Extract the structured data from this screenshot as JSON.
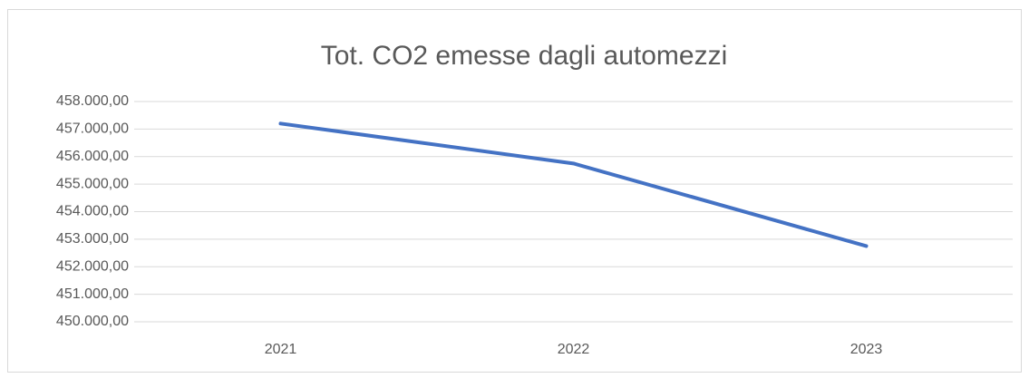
{
  "chart_data": {
    "type": "line",
    "title": "Tot. CO2 emesse dagli automezzi",
    "categories": [
      "2021",
      "2022",
      "2023"
    ],
    "values": [
      457200,
      455750,
      452750
    ],
    "color": "#4472c4",
    "ylim": [
      450000,
      458000
    ],
    "yticks": [
      {
        "value": 450000,
        "label": "450.000,00"
      },
      {
        "value": 451000,
        "label": "451.000,00"
      },
      {
        "value": 452000,
        "label": "452.000,00"
      },
      {
        "value": 453000,
        "label": "453.000,00"
      },
      {
        "value": 454000,
        "label": "454.000,00"
      },
      {
        "value": 455000,
        "label": "455.000,00"
      },
      {
        "value": 456000,
        "label": "456.000,00"
      },
      {
        "value": 457000,
        "label": "457.000,00"
      },
      {
        "value": 458000,
        "label": "458.000,00"
      }
    ],
    "grid": true
  }
}
